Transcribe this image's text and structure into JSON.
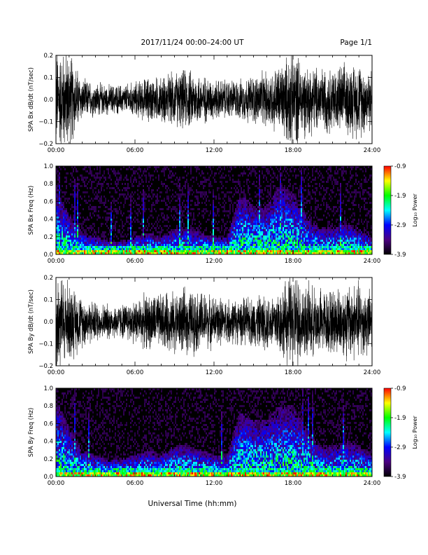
{
  "header": {
    "title": "2017/11/24  00:00–24:00 UT",
    "page": "Page 1/1"
  },
  "footer": {
    "xlabel": "Universal Time (hh:mm)"
  },
  "chart_data": [
    {
      "type": "line",
      "panel": "SPA Bx dB/dt",
      "ylabel": "SPA Bx dB/dt (nT/sec)",
      "xlim": [
        0,
        24
      ],
      "ylim": [
        -0.2,
        0.2
      ],
      "x_tick_labels": [
        "00:00",
        "06:00",
        "12:00",
        "18:00",
        "24:00"
      ],
      "y_tick_labels": [
        "0.2",
        "0.1",
        "0.0",
        "−0.1",
        "−0.2"
      ],
      "x_hours": [
        0,
        1,
        2,
        3,
        4,
        5,
        6,
        7,
        8,
        9,
        10,
        11,
        12,
        13,
        14,
        15,
        16,
        17,
        18,
        19,
        20,
        21,
        22,
        23,
        24
      ],
      "envelope": [
        0.2,
        0.2,
        0.08,
        0.07,
        0.06,
        0.06,
        0.07,
        0.09,
        0.09,
        0.11,
        0.12,
        0.1,
        0.08,
        0.08,
        0.08,
        0.1,
        0.11,
        0.14,
        0.2,
        0.14,
        0.13,
        0.13,
        0.14,
        0.15,
        0.12
      ],
      "color": "#000000"
    },
    {
      "type": "heatmap",
      "panel": "SPA Bx Freq",
      "ylabel": "SPA Bx Freq (Hz)",
      "xlim": [
        0,
        24
      ],
      "ylim": [
        0,
        1
      ],
      "x_tick_labels": [
        "00:00",
        "06:00",
        "12:00",
        "18:00",
        "24:00"
      ],
      "y_tick_labels": [
        "1.0",
        "0.8",
        "0.6",
        "0.4",
        "0.2",
        "0.0"
      ],
      "colorbar": {
        "label": "Log₁₀ Power",
        "ticks": [
          "-0.9",
          "-1.9",
          "-2.9",
          "-3.9"
        ],
        "range": [
          -3.9,
          -0.9
        ],
        "colors": [
          "#000000",
          "#4b0082",
          "#0000ff",
          "#00ffff",
          "#00ff00",
          "#ffff00",
          "#ff0000"
        ]
      },
      "x_hours": [
        0,
        1,
        2,
        3,
        4,
        5,
        6,
        7,
        8,
        9,
        10,
        11,
        12,
        13,
        14,
        15,
        16,
        17,
        18,
        19,
        20,
        21,
        22,
        23,
        24
      ],
      "activity_top_hz": [
        0.8,
        0.45,
        0.25,
        0.2,
        0.15,
        0.15,
        0.2,
        0.25,
        0.2,
        0.3,
        0.3,
        0.25,
        0.2,
        0.2,
        0.7,
        0.55,
        0.55,
        0.8,
        0.7,
        0.45,
        0.3,
        0.3,
        0.35,
        0.3,
        0.2
      ]
    },
    {
      "type": "line",
      "panel": "SPA By dB/dt",
      "ylabel": "SPA By dB/dt (nT/sec)",
      "xlim": [
        0,
        24
      ],
      "ylim": [
        -0.2,
        0.2
      ],
      "x_tick_labels": [
        "00:00",
        "06:00",
        "12:00",
        "18:00",
        "24:00"
      ],
      "y_tick_labels": [
        "0.2",
        "0.1",
        "0.0",
        "−0.1",
        "−0.2"
      ],
      "x_hours": [
        0,
        1,
        2,
        3,
        4,
        5,
        6,
        7,
        8,
        9,
        10,
        11,
        12,
        13,
        14,
        15,
        16,
        17,
        18,
        19,
        20,
        21,
        22,
        23,
        24
      ],
      "envelope": [
        0.2,
        0.16,
        0.1,
        0.08,
        0.07,
        0.07,
        0.09,
        0.11,
        0.11,
        0.12,
        0.13,
        0.12,
        0.1,
        0.09,
        0.09,
        0.1,
        0.11,
        0.13,
        0.2,
        0.15,
        0.13,
        0.13,
        0.15,
        0.16,
        0.12
      ],
      "color": "#000000"
    },
    {
      "type": "heatmap",
      "panel": "SPA By Freq",
      "ylabel": "SPA By Freq (Hz)",
      "xlim": [
        0,
        24
      ],
      "ylim": [
        0,
        1
      ],
      "x_tick_labels": [
        "00:00",
        "06:00",
        "12:00",
        "18:00",
        "24:00"
      ],
      "y_tick_labels": [
        "1.0",
        "0.8",
        "0.6",
        "0.4",
        "0.2",
        "0.0"
      ],
      "colorbar": {
        "label": "Log₁₀ Power",
        "ticks": [
          "-0.9",
          "-1.9",
          "-2.9",
          "-3.9"
        ],
        "range": [
          -3.9,
          -0.9
        ],
        "colors": [
          "#000000",
          "#4b0082",
          "#0000ff",
          "#00ffff",
          "#00ff00",
          "#ffff00",
          "#ff0000"
        ]
      },
      "x_hours": [
        0,
        1,
        2,
        3,
        4,
        5,
        6,
        7,
        8,
        9,
        10,
        11,
        12,
        13,
        14,
        15,
        16,
        17,
        18,
        19,
        20,
        21,
        22,
        23,
        24
      ],
      "activity_top_hz": [
        0.9,
        0.55,
        0.3,
        0.25,
        0.2,
        0.2,
        0.25,
        0.3,
        0.25,
        0.35,
        0.35,
        0.3,
        0.25,
        0.25,
        0.75,
        0.65,
        0.65,
        0.8,
        0.8,
        0.55,
        0.35,
        0.35,
        0.4,
        0.35,
        0.25
      ]
    }
  ]
}
